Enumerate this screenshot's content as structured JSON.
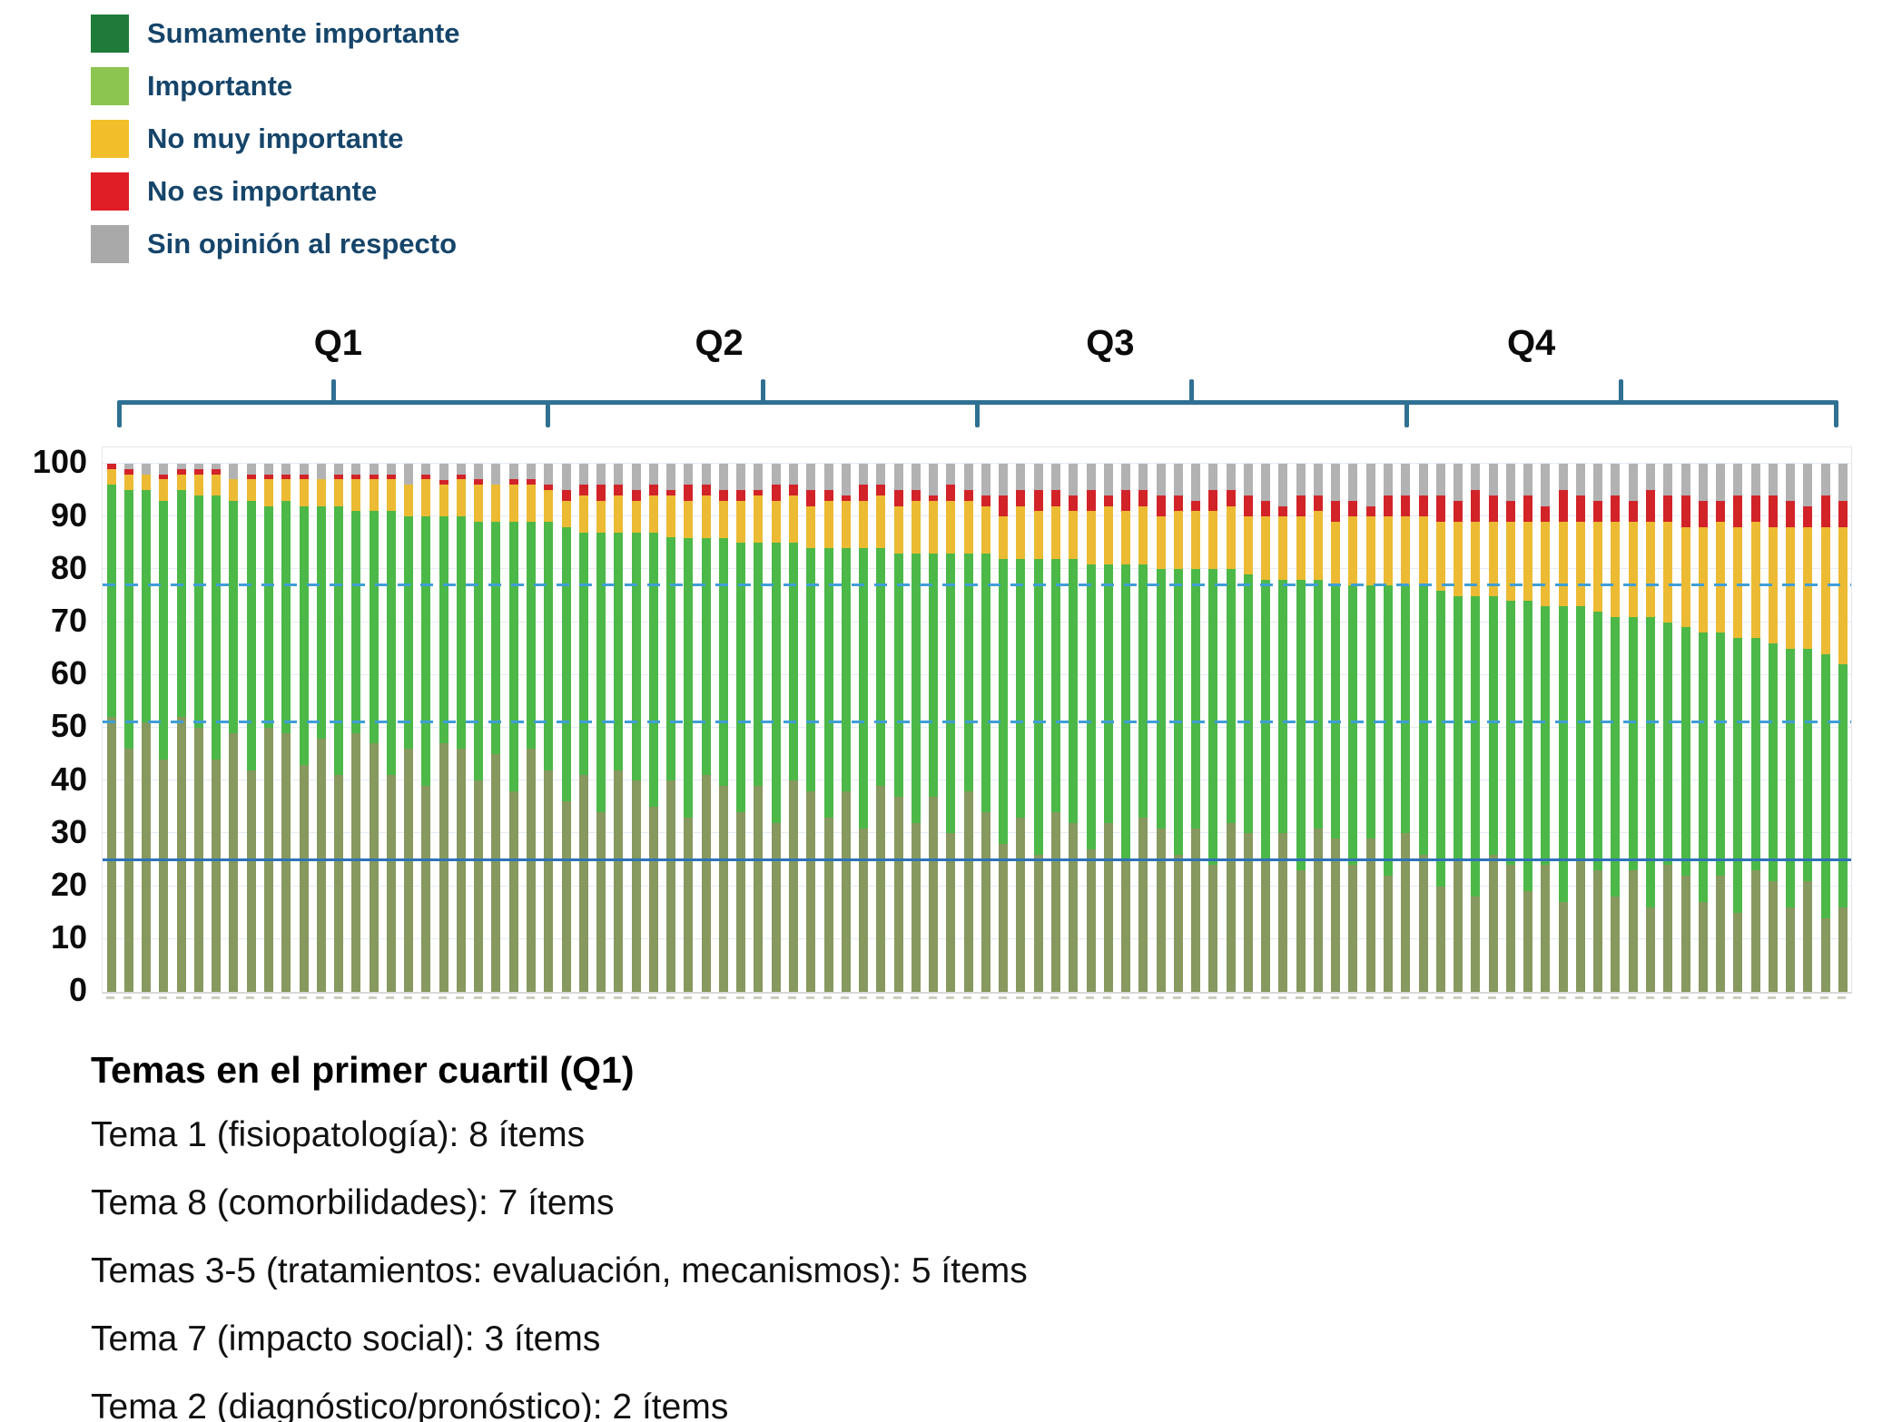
{
  "legend": {
    "items": [
      {
        "key": "sumamente-importante",
        "label": "Sumamente importante",
        "color": "#1e7b3a"
      },
      {
        "key": "importante",
        "label": "Importante",
        "color": "#8cc54f"
      },
      {
        "key": "no-muy-importante",
        "label": "No muy importante",
        "color": "#f2bf2b"
      },
      {
        "key": "no-es-importante",
        "label": "No es importante",
        "color": "#e01e25"
      },
      {
        "key": "sin-opinion-al-respecto",
        "label": "Sin opinión al respecto",
        "color": "#a9a9a9"
      }
    ],
    "text_color": "#16456a"
  },
  "chart_data": {
    "type": "bar",
    "stacked": true,
    "title": "",
    "xlabel": "",
    "ylabel": "",
    "ylim": [
      0,
      100
    ],
    "yticks": [
      0,
      10,
      20,
      30,
      40,
      50,
      60,
      70,
      80,
      90,
      100
    ],
    "grid": true,
    "legend_position": "top-left",
    "n_items": 100,
    "units": "percent",
    "series": [
      {
        "key": "sumamente-importante",
        "name": "Sumamente importante",
        "color": "#87995f"
      },
      {
        "key": "importante",
        "name": "Importante",
        "color": "#4cb848"
      },
      {
        "key": "no-muy-importante",
        "name": "No muy importante",
        "color": "#ecbb33"
      },
      {
        "key": "no-es-importante",
        "name": "No es importante",
        "color": "#d22329"
      },
      {
        "key": "sin-opinion-al-respecto",
        "name": "Sin opinión al respecto",
        "color": "#b2b2b2"
      }
    ],
    "reference_lines": [
      {
        "value": 77,
        "style": "dashed",
        "color": "#3f9ed6"
      },
      {
        "value": 51,
        "style": "dashed",
        "color": "#3f9ed6"
      },
      {
        "value": 25,
        "style": "solid",
        "color": "#2e73b8"
      }
    ],
    "quartiles": [
      {
        "label": "Q1",
        "from_bar": 1,
        "to_bar": 25
      },
      {
        "label": "Q2",
        "from_bar": 26,
        "to_bar": 50
      },
      {
        "label": "Q3",
        "from_bar": 51,
        "to_bar": 75
      },
      {
        "label": "Q4",
        "from_bar": 76,
        "to_bar": 100
      }
    ],
    "bracket_color": "#2f7093",
    "bars": [
      [
        52,
        44,
        3,
        1,
        0
      ],
      [
        46,
        49,
        3,
        1,
        1
      ],
      [
        51,
        44,
        3,
        0,
        2
      ],
      [
        44,
        49,
        4,
        1,
        2
      ],
      [
        52,
        43,
        3,
        1,
        1
      ],
      [
        50,
        44,
        4,
        1,
        1
      ],
      [
        44,
        50,
        4,
        1,
        1
      ],
      [
        49,
        44,
        4,
        0,
        3
      ],
      [
        42,
        51,
        4,
        1,
        2
      ],
      [
        50,
        42,
        5,
        1,
        2
      ],
      [
        49,
        44,
        4,
        1,
        2
      ],
      [
        43,
        49,
        5,
        1,
        2
      ],
      [
        48,
        44,
        5,
        0,
        3
      ],
      [
        41,
        51,
        5,
        1,
        2
      ],
      [
        49,
        42,
        6,
        1,
        2
      ],
      [
        47,
        44,
        6,
        1,
        2
      ],
      [
        41,
        50,
        6,
        1,
        2
      ],
      [
        46,
        44,
        6,
        0,
        4
      ],
      [
        39,
        51,
        7,
        1,
        2
      ],
      [
        47,
        43,
        6,
        1,
        3
      ],
      [
        46,
        44,
        7,
        1,
        2
      ],
      [
        40,
        49,
        7,
        1,
        3
      ],
      [
        45,
        44,
        7,
        0,
        4
      ],
      [
        38,
        51,
        7,
        1,
        3
      ],
      [
        46,
        43,
        7,
        1,
        3
      ],
      [
        42,
        47,
        6,
        1,
        4
      ],
      [
        36,
        52,
        5,
        2,
        5
      ],
      [
        41,
        46,
        7,
        2,
        4
      ],
      [
        34,
        53,
        6,
        3,
        4
      ],
      [
        42,
        45,
        7,
        2,
        4
      ],
      [
        40,
        47,
        6,
        2,
        5
      ],
      [
        35,
        52,
        7,
        2,
        4
      ],
      [
        40,
        46,
        8,
        1,
        5
      ],
      [
        33,
        53,
        7,
        3,
        4
      ],
      [
        41,
        45,
        8,
        2,
        4
      ],
      [
        39,
        47,
        7,
        2,
        5
      ],
      [
        34,
        51,
        8,
        2,
        5
      ],
      [
        39,
        46,
        9,
        1,
        5
      ],
      [
        32,
        53,
        8,
        3,
        4
      ],
      [
        40,
        45,
        9,
        2,
        4
      ],
      [
        38,
        46,
        8,
        3,
        5
      ],
      [
        33,
        51,
        9,
        2,
        5
      ],
      [
        38,
        46,
        9,
        1,
        6
      ],
      [
        31,
        53,
        9,
        3,
        4
      ],
      [
        39,
        45,
        10,
        2,
        4
      ],
      [
        37,
        46,
        9,
        3,
        5
      ],
      [
        32,
        51,
        10,
        2,
        5
      ],
      [
        37,
        46,
        10,
        1,
        6
      ],
      [
        30,
        53,
        10,
        3,
        4
      ],
      [
        38,
        45,
        10,
        2,
        5
      ],
      [
        34,
        49,
        9,
        2,
        6
      ],
      [
        28,
        54,
        8,
        4,
        6
      ],
      [
        33,
        49,
        10,
        3,
        5
      ],
      [
        26,
        56,
        9,
        4,
        5
      ],
      [
        34,
        48,
        10,
        3,
        5
      ],
      [
        32,
        50,
        9,
        3,
        6
      ],
      [
        27,
        54,
        10,
        4,
        5
      ],
      [
        32,
        49,
        11,
        2,
        6
      ],
      [
        25,
        56,
        10,
        4,
        5
      ],
      [
        33,
        48,
        11,
        3,
        5
      ],
      [
        31,
        49,
        10,
        4,
        6
      ],
      [
        26,
        54,
        11,
        3,
        6
      ],
      [
        31,
        49,
        11,
        2,
        7
      ],
      [
        24,
        56,
        11,
        4,
        5
      ],
      [
        32,
        48,
        12,
        3,
        5
      ],
      [
        30,
        49,
        11,
        4,
        6
      ],
      [
        25,
        53,
        12,
        3,
        7
      ],
      [
        30,
        48,
        12,
        2,
        8
      ],
      [
        23,
        55,
        12,
        4,
        6
      ],
      [
        31,
        47,
        13,
        3,
        6
      ],
      [
        29,
        48,
        12,
        4,
        7
      ],
      [
        24,
        53,
        13,
        3,
        7
      ],
      [
        29,
        48,
        13,
        2,
        8
      ],
      [
        22,
        55,
        13,
        4,
        6
      ],
      [
        30,
        47,
        13,
        4,
        6
      ],
      [
        26,
        51,
        13,
        4,
        6
      ],
      [
        20,
        56,
        13,
        5,
        6
      ],
      [
        25,
        50,
        14,
        4,
        7
      ],
      [
        18,
        57,
        14,
        6,
        5
      ],
      [
        26,
        49,
        14,
        5,
        6
      ],
      [
        24,
        50,
        15,
        4,
        7
      ],
      [
        19,
        55,
        15,
        5,
        6
      ],
      [
        24,
        49,
        16,
        3,
        8
      ],
      [
        17,
        56,
        16,
        6,
        5
      ],
      [
        25,
        48,
        16,
        5,
        6
      ],
      [
        23,
        49,
        17,
        4,
        7
      ],
      [
        18,
        53,
        18,
        5,
        6
      ],
      [
        23,
        48,
        18,
        4,
        7
      ],
      [
        16,
        55,
        18,
        6,
        5
      ],
      [
        24,
        46,
        19,
        5,
        6
      ],
      [
        22,
        47,
        19,
        6,
        6
      ],
      [
        17,
        51,
        20,
        5,
        7
      ],
      [
        22,
        46,
        21,
        4,
        7
      ],
      [
        15,
        52,
        21,
        6,
        6
      ],
      [
        23,
        44,
        22,
        5,
        6
      ],
      [
        21,
        45,
        22,
        6,
        6
      ],
      [
        16,
        49,
        23,
        5,
        7
      ],
      [
        21,
        44,
        23,
        4,
        8
      ],
      [
        14,
        50,
        24,
        6,
        6
      ],
      [
        16,
        46,
        26,
        5,
        7
      ]
    ]
  },
  "notes": {
    "title": "Temas en el primer cuartil (Q1)",
    "lines": [
      "Tema 1 (fisiopatología): 8 ítems",
      "Tema 8 (comorbilidades): 7 ítems",
      "Temas 3-5 (tratamientos: evaluación, mecanismos): 5 ítems",
      "Tema 7 (impacto social): 3 ítems",
      "Tema 2 (diagnóstico/pronóstico): 2 ítems"
    ]
  }
}
